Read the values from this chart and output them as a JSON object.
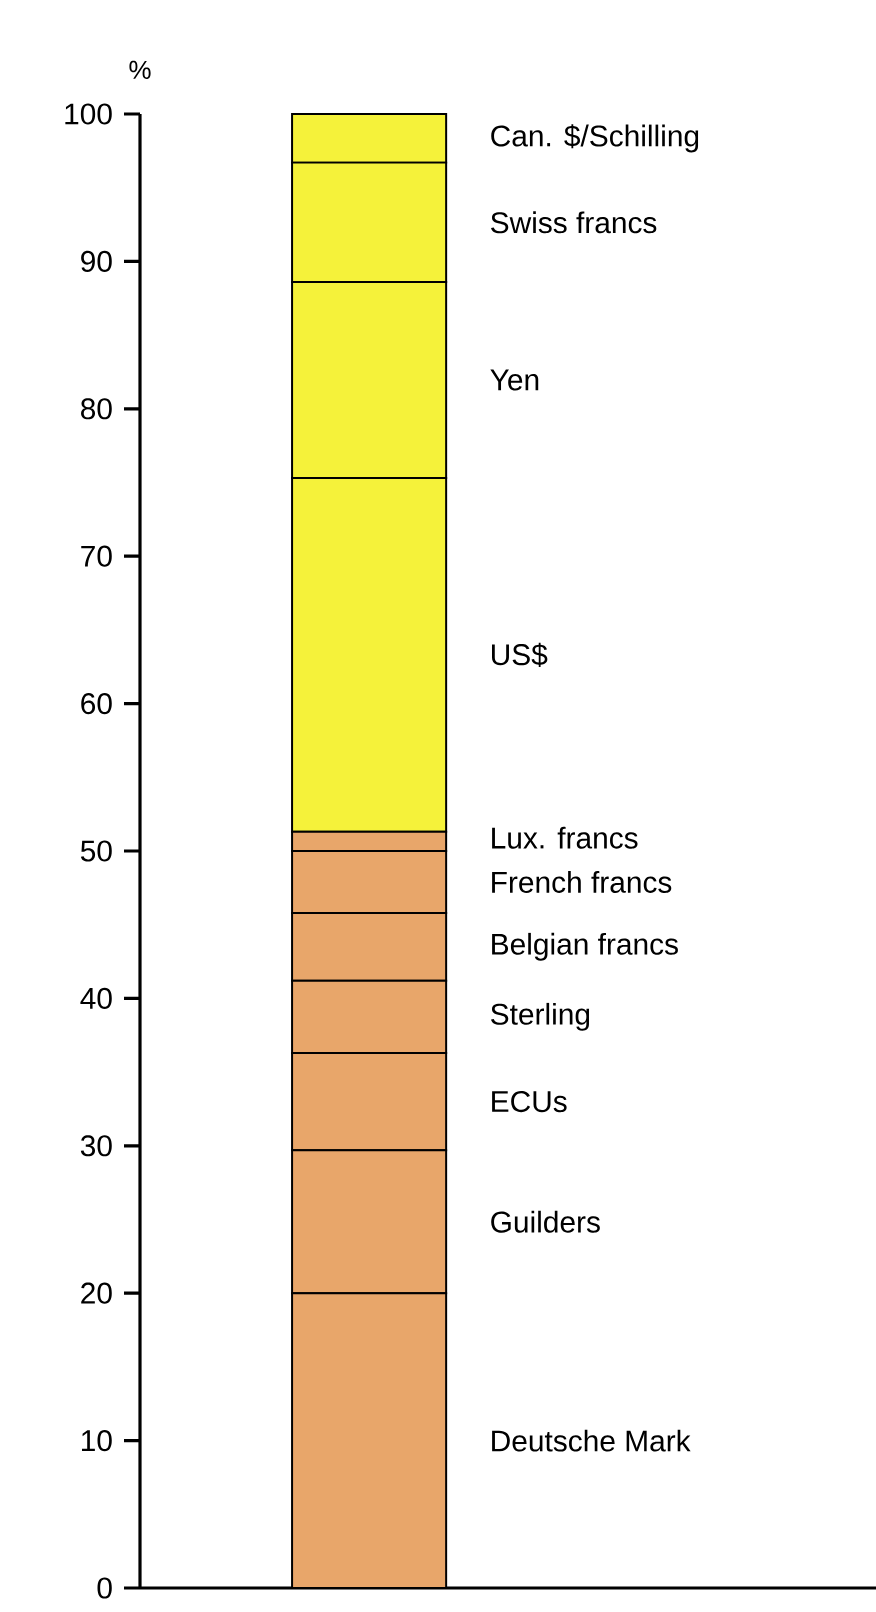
{
  "chart_data": {
    "type": "bar",
    "stacked": true,
    "ylabel": "%",
    "categories": [
      null
    ],
    "ylim": [
      0,
      100
    ],
    "yticks": [
      0,
      10,
      20,
      30,
      40,
      50,
      60,
      70,
      80,
      90,
      100
    ],
    "tick_labels": "y",
    "series": [
      {
        "name": "Deutsche Mark",
        "color": "#e8a66a",
        "values": [
          20.0
        ]
      },
      {
        "name": "Guilders",
        "color": "#e8a66a",
        "values": [
          9.7
        ]
      },
      {
        "name": "ECUs",
        "color": "#e8a66a",
        "values": [
          6.6
        ]
      },
      {
        "name": "Sterling",
        "color": "#e8a66a",
        "values": [
          4.9
        ]
      },
      {
        "name": "Belgian francs",
        "color": "#e8a66a",
        "values": [
          4.6
        ]
      },
      {
        "name": "French francs",
        "color": "#e8a66a",
        "values": [
          4.2
        ]
      },
      {
        "name": "Lux. francs",
        "color": "#e8a66a",
        "values": [
          1.3
        ]
      },
      {
        "name": "US$",
        "color": "#f5f23a",
        "values": [
          24.0
        ]
      },
      {
        "name": "Yen",
        "color": "#f5f23a",
        "values": [
          13.3
        ]
      },
      {
        "name": "Swiss francs",
        "color": "#f5f23a",
        "values": [
          8.1
        ]
      },
      {
        "name": "Can. $/Schilling",
        "color": "#f5f23a",
        "values": [
          3.3
        ]
      }
    ]
  }
}
